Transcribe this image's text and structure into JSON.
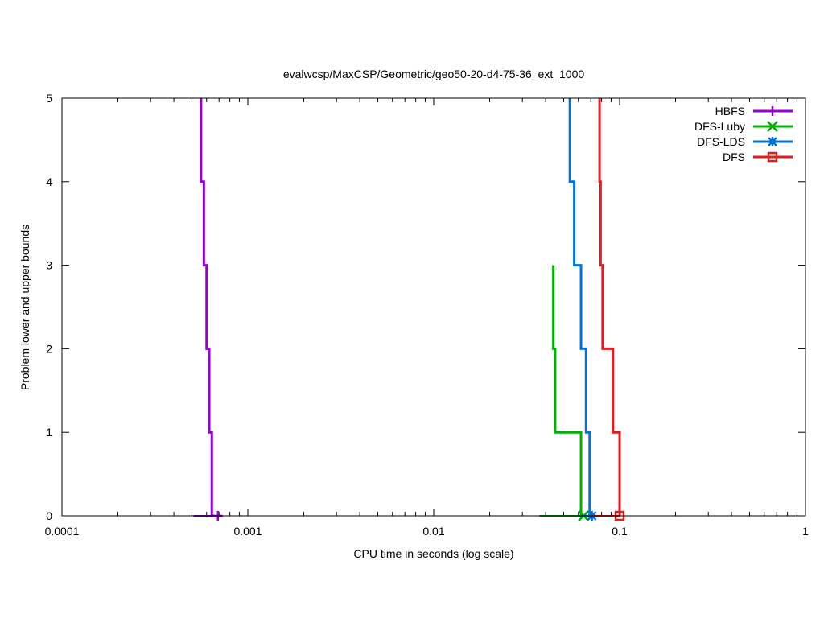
{
  "chart_data": {
    "type": "line",
    "title": "evalwcsp/MaxCSP/Geometric/geo50-20-d4-75-36_ext_1000",
    "xlabel": "CPU time in seconds (log scale)",
    "ylabel": "Problem lower and upper bounds",
    "x_scale": "log",
    "xlim": [
      0.0001,
      1
    ],
    "ylim": [
      0,
      5
    ],
    "x_ticks": [
      {
        "value": 0.0001,
        "label": "0.0001"
      },
      {
        "value": 0.001,
        "label": "0.001"
      },
      {
        "value": 0.01,
        "label": "0.01"
      },
      {
        "value": 0.1,
        "label": "0.1"
      },
      {
        "value": 1,
        "label": "1"
      }
    ],
    "y_ticks": [
      {
        "value": 0,
        "label": "0"
      },
      {
        "value": 1,
        "label": "1"
      },
      {
        "value": 2,
        "label": "2"
      },
      {
        "value": 3,
        "label": "3"
      },
      {
        "value": 4,
        "label": "4"
      },
      {
        "value": 5,
        "label": "5"
      }
    ],
    "grid": false,
    "legend_position": "top-right",
    "series": [
      {
        "name": "HBFS",
        "color": "#9400d3",
        "marker": "plus",
        "upper": [
          [
            0.00056,
            5
          ],
          [
            0.00058,
            4
          ],
          [
            0.0006,
            3
          ],
          [
            0.00062,
            2
          ],
          [
            0.00064,
            1
          ],
          [
            0.00066,
            0
          ]
        ],
        "lower": [
          [
            0.00051,
            0
          ],
          [
            0.00066,
            0
          ]
        ],
        "marker_point": [
          0.00069,
          0
        ]
      },
      {
        "name": "DFS-Luby",
        "color": "#00b000",
        "marker": "cross",
        "upper": [
          [
            0.044,
            3
          ],
          [
            0.045,
            2
          ],
          [
            0.062,
            1
          ],
          [
            0.064,
            0
          ]
        ],
        "lower": [
          [
            0.037,
            0
          ],
          [
            0.064,
            0
          ]
        ],
        "marker_point": [
          0.064,
          0
        ]
      },
      {
        "name": "DFS-LDS",
        "color": "#0072d9",
        "marker": "star",
        "upper": [
          [
            0.054,
            5
          ],
          [
            0.057,
            4
          ],
          [
            0.062,
            3
          ],
          [
            0.066,
            2
          ],
          [
            0.069,
            1
          ],
          [
            0.071,
            0
          ]
        ],
        "lower": [
          [
            0.062,
            0
          ],
          [
            0.071,
            0
          ]
        ],
        "marker_point": [
          0.071,
          0
        ]
      },
      {
        "name": "DFS",
        "color": "#e41a1c",
        "marker": "square",
        "upper": [
          [
            0.078,
            5
          ],
          [
            0.079,
            4
          ],
          [
            0.081,
            3
          ],
          [
            0.092,
            2
          ],
          [
            0.1,
            1
          ],
          [
            0.1,
            0
          ]
        ],
        "lower": [
          [
            0.07,
            0
          ],
          [
            0.1,
            0
          ]
        ],
        "marker_point": [
          0.1,
          0
        ]
      }
    ]
  }
}
